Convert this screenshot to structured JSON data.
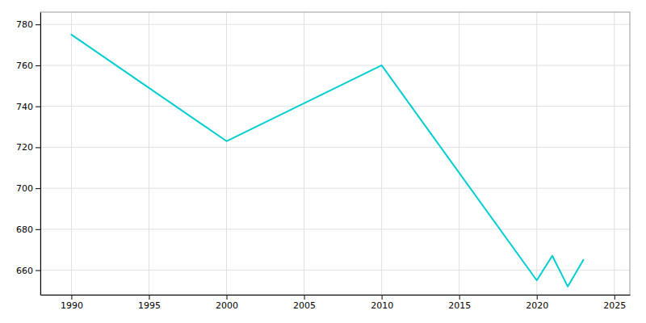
{
  "chart_data": {
    "type": "line",
    "x": [
      1990,
      2000,
      2010,
      2020,
      2021,
      2022,
      2023
    ],
    "values": [
      775,
      723,
      760,
      655,
      667,
      652,
      665
    ],
    "color": "#00CED1",
    "xlim": [
      1988,
      2026
    ],
    "ylim": [
      648,
      786
    ],
    "xticks": [
      1990,
      1995,
      2000,
      2005,
      2010,
      2015,
      2020,
      2025
    ],
    "yticks": [
      660,
      680,
      700,
      720,
      740,
      760,
      780
    ],
    "grid": true
  }
}
